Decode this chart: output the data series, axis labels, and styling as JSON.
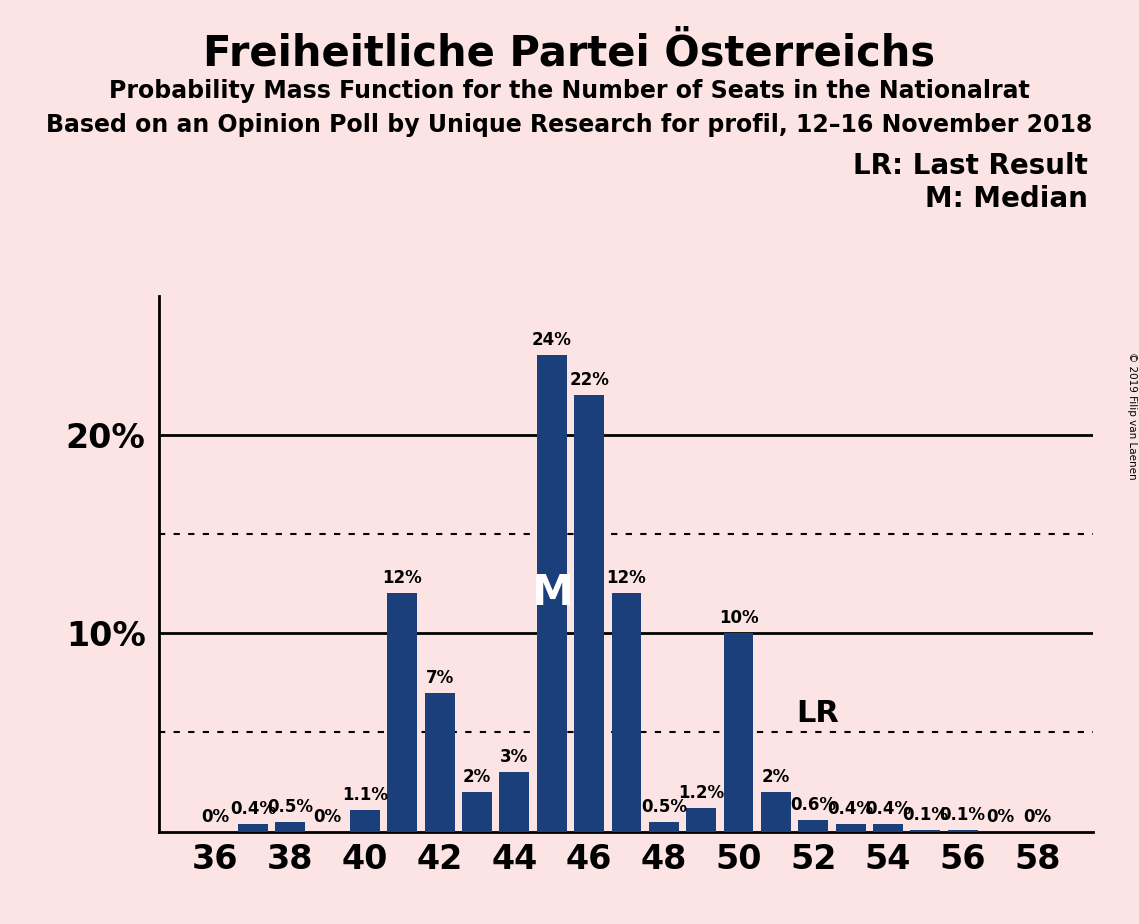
{
  "title": "Freiheitliche Partei Österreichs",
  "subtitle1": "Probability Mass Function for the Number of Seats in the Nationalrat",
  "subtitle2": "Based on an Opinion Poll by Unique Research for profil, 12–16 November 2018",
  "legend_lr": "LR: Last Result",
  "legend_m": "M: Median",
  "copyright": "© 2019 Filip van Laenen",
  "seats": [
    36,
    37,
    38,
    39,
    40,
    41,
    42,
    43,
    44,
    45,
    46,
    47,
    48,
    49,
    50,
    51,
    52,
    53,
    54,
    55,
    56,
    57,
    58
  ],
  "values": [
    0.0,
    0.4,
    0.5,
    0.0,
    1.1,
    12.0,
    7.0,
    2.0,
    3.0,
    24.0,
    22.0,
    12.0,
    0.5,
    1.2,
    10.0,
    2.0,
    0.6,
    0.4,
    0.4,
    0.1,
    0.1,
    0.0,
    0.0
  ],
  "labels": [
    "0%",
    "0.4%",
    "0.5%",
    "0%",
    "1.1%",
    "12%",
    "7%",
    "2%",
    "3%",
    "24%",
    "22%",
    "12%",
    "0.5%",
    "1.2%",
    "10%",
    "2%",
    "0.6%",
    "0.4%",
    "0.4%",
    "0.1%",
    "0.1%",
    "0%",
    "0%"
  ],
  "bar_color": "#1a3f7a",
  "background_color": "#fce4e4",
  "median_seat": 45,
  "last_result_seat": 51,
  "solid_lines": [
    10.0,
    20.0
  ],
  "dotted_lines": [
    5.0,
    15.0
  ],
  "ylim": [
    0,
    27
  ],
  "title_fontsize": 30,
  "subtitle_fontsize": 17,
  "bar_label_fontsize": 12,
  "ytick_fontsize": 24,
  "xtick_fontsize": 24,
  "legend_fontsize": 20,
  "median_fontsize": 30,
  "lr_fontsize": 22
}
